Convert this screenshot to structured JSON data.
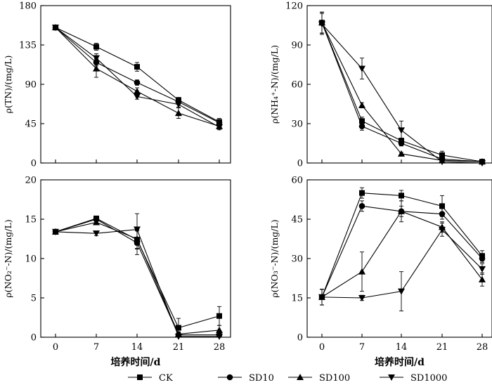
{
  "chart_data": [
    {
      "type": "line",
      "ylabel": "ρ(TN)/(mg/L)",
      "ylim": [
        0,
        180
      ],
      "yticks": [
        0,
        45,
        90,
        135,
        180
      ],
      "x": [
        0,
        7,
        14,
        21,
        28
      ],
      "xticks": [
        0,
        7,
        14,
        21,
        28
      ],
      "xlabel": "",
      "series": [
        {
          "name": "CK",
          "values": [
            155,
            133,
            110,
            72,
            47
          ],
          "err": [
            2,
            4,
            5,
            3,
            4
          ]
        },
        {
          "name": "SD10",
          "values": [
            155,
            115,
            92,
            70,
            46
          ],
          "err": [
            2,
            4,
            3,
            3,
            3
          ]
        },
        {
          "name": "SD100",
          "values": [
            155,
            108,
            82,
            57,
            42
          ],
          "err": [
            2,
            10,
            4,
            6,
            3
          ]
        },
        {
          "name": "SD1000",
          "values": [
            155,
            120,
            76,
            67,
            41
          ],
          "err": [
            2,
            5,
            3,
            3,
            3
          ]
        }
      ]
    },
    {
      "type": "line",
      "ylabel": "ρ(NH₄⁺-N)/(mg/L)",
      "ylim": [
        0,
        120
      ],
      "yticks": [
        0,
        30,
        60,
        90,
        120
      ],
      "x": [
        0,
        7,
        14,
        21,
        28
      ],
      "xticks": [
        0,
        7,
        14,
        21,
        28
      ],
      "xlabel": "",
      "series": [
        {
          "name": "CK",
          "values": [
            107,
            32,
            17,
            6,
            1
          ],
          "err": [
            8,
            3,
            2,
            3,
            1
          ]
        },
        {
          "name": "SD10",
          "values": [
            107,
            28,
            15,
            3,
            1
          ],
          "err": [
            8,
            3,
            2,
            2,
            1
          ]
        },
        {
          "name": "SD100",
          "values": [
            107,
            44,
            7,
            2,
            1
          ],
          "err": [
            8,
            2,
            1,
            1,
            1
          ]
        },
        {
          "name": "SD1000",
          "values": [
            106,
            72,
            25,
            1,
            0
          ],
          "err": [
            8,
            8,
            7,
            1,
            1
          ]
        }
      ]
    },
    {
      "type": "line",
      "ylabel": "ρ(NO₂⁻-N)/(mg/L)",
      "ylim": [
        0,
        20
      ],
      "yticks": [
        0,
        5,
        10,
        15,
        20
      ],
      "x": [
        0,
        7,
        14,
        21,
        28
      ],
      "xticks": [
        0,
        7,
        14,
        21,
        28
      ],
      "xlabel": "培养时间/d",
      "series": [
        {
          "name": "CK",
          "values": [
            13.4,
            15.1,
            12.4,
            1.2,
            2.7
          ],
          "err": [
            0.3,
            0.3,
            1.2,
            1.2,
            1.2
          ]
        },
        {
          "name": "SD10",
          "values": [
            13.4,
            15.0,
            12.0,
            0.3,
            0.3
          ],
          "err": [
            0.3,
            0.3,
            1.5,
            0.3,
            0.3
          ]
        },
        {
          "name": "SD100",
          "values": [
            13.4,
            14.6,
            12.5,
            0.4,
            0.9
          ],
          "err": [
            0.3,
            0.3,
            1.2,
            0.3,
            0.6
          ]
        },
        {
          "name": "SD1000",
          "values": [
            13.4,
            13.2,
            13.7,
            0.1,
            0.1
          ],
          "err": [
            0.3,
            0.3,
            2.0,
            0.2,
            0.2
          ]
        }
      ]
    },
    {
      "type": "line",
      "ylabel": "ρ(NO₃⁻-N)/(mg/L)",
      "ylim": [
        0,
        60
      ],
      "yticks": [
        0,
        15,
        30,
        45,
        60
      ],
      "x": [
        0,
        7,
        14,
        21,
        28
      ],
      "xticks": [
        0,
        7,
        14,
        21,
        28
      ],
      "xlabel": "培养时间/d",
      "series": [
        {
          "name": "CK",
          "values": [
            15.3,
            55,
            54,
            50,
            31
          ],
          "err": [
            3,
            2,
            2,
            4,
            2
          ]
        },
        {
          "name": "SD10",
          "values": [
            15.3,
            50,
            48,
            47,
            30
          ],
          "err": [
            3,
            2,
            2,
            2,
            1.5
          ]
        },
        {
          "name": "SD100",
          "values": [
            15.3,
            25,
            48,
            42,
            22
          ],
          "err": [
            3,
            7.5,
            4,
            2,
            2.5
          ]
        },
        {
          "name": "SD1000",
          "values": [
            15.3,
            15,
            17.5,
            41,
            26
          ],
          "err": [
            3,
            1,
            7.5,
            2.5,
            2
          ]
        }
      ]
    }
  ],
  "legend": {
    "placement": "bottom",
    "items": [
      {
        "label": "CK",
        "marker": "square"
      },
      {
        "label": "SD10",
        "marker": "circle"
      },
      {
        "label": "SD100",
        "marker": "triangle-up"
      },
      {
        "label": "SD1000",
        "marker": "triangle-down"
      }
    ]
  }
}
